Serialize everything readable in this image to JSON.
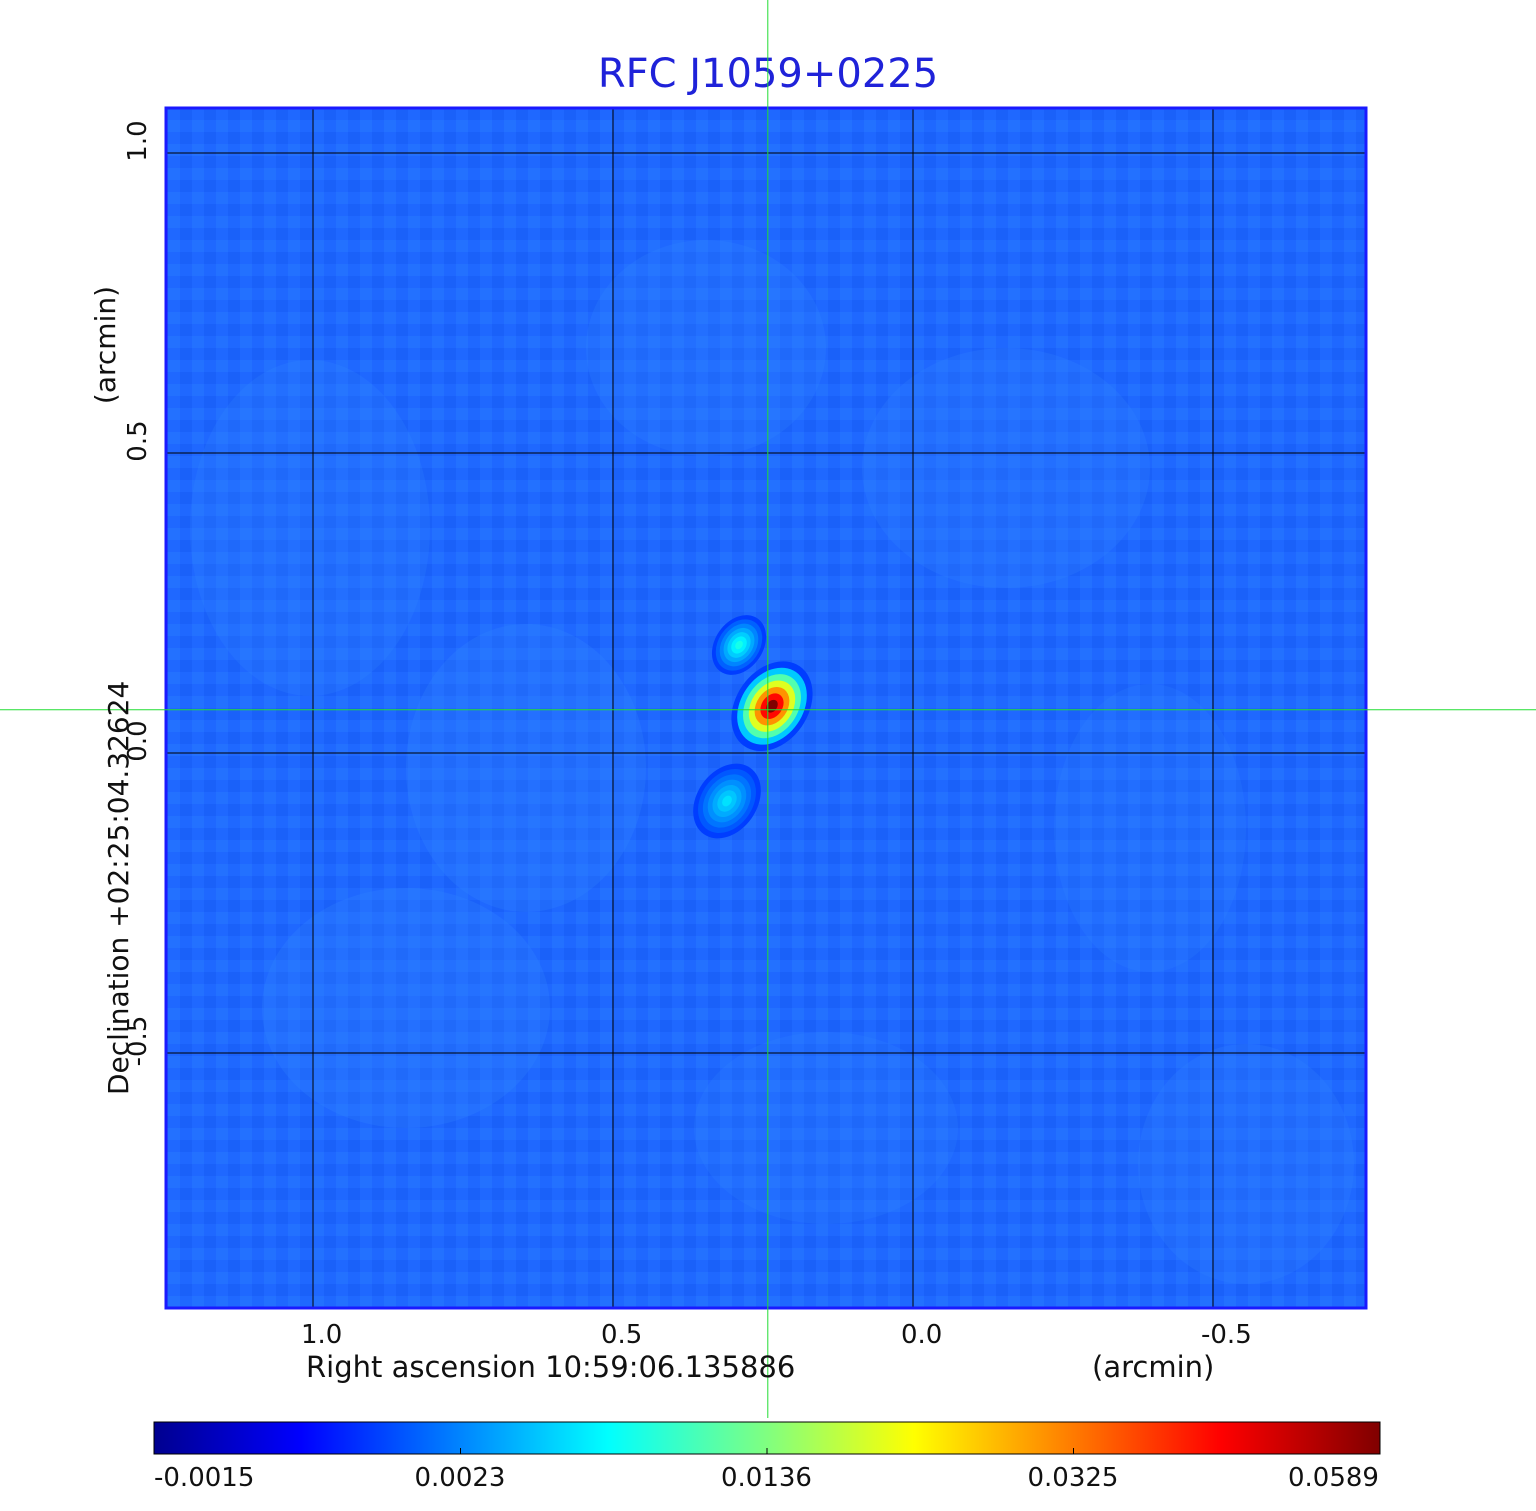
{
  "chart_data": {
    "type": "heatmap",
    "title": "RFC J1059+0225",
    "xlabel": "Right ascension  10:59:06.135886",
    "xunit": "(arcmin)",
    "ylabel": "Declination  +02:25:04.32624",
    "yunit": "(arcmin)",
    "x_ticks": [
      "1.0",
      "0.5",
      "0.0",
      "-0.5"
    ],
    "y_ticks": [
      "1.0",
      "0.5",
      "0.0",
      "-0.5"
    ],
    "xlim": [
      1.245,
      -0.755
    ],
    "ylim": [
      -0.925,
      1.075
    ],
    "x_reversed": true,
    "grid": true,
    "crosshair": {
      "x": 0.242,
      "y": 0.072,
      "color": "#22dd33"
    },
    "colormap": "jet",
    "colorbar": {
      "ticks": [
        "-0.0015",
        "0.0023",
        "0.0136",
        "0.0325",
        "0.0589"
      ],
      "min": -0.0015,
      "max": 0.0589,
      "scale": "nonlinear"
    },
    "sources": [
      {
        "x": 0.235,
        "y": 0.078,
        "peak": 0.0589,
        "extent_arcmin": 0.06
      },
      {
        "x": 0.29,
        "y": 0.18,
        "peak": 0.006,
        "extent_arcmin": 0.04
      },
      {
        "x": 0.31,
        "y": -0.08,
        "peak": 0.004,
        "extent_arcmin": 0.05
      }
    ]
  },
  "colors": {
    "title": "#1f22d9",
    "frame": "#1a1aff",
    "background_field": "#1f66ff",
    "grid": "#000000",
    "crosshair": "#22dd33"
  }
}
